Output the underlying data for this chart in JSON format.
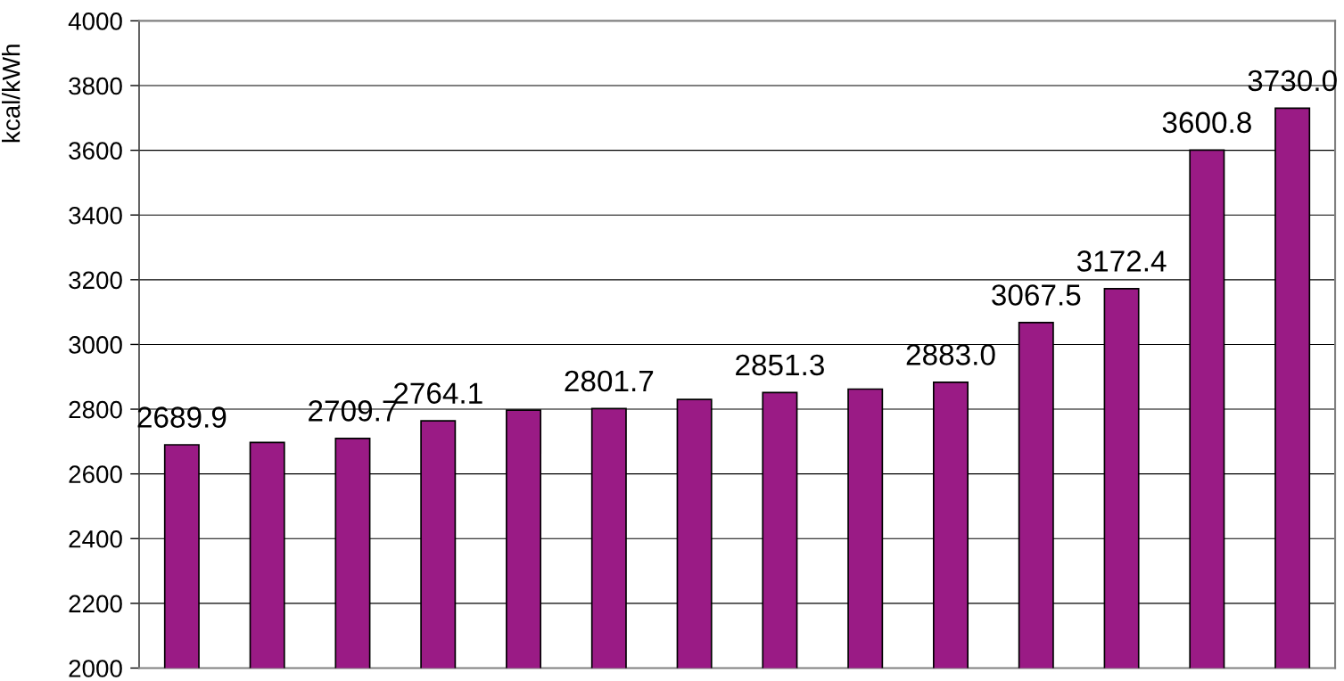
{
  "chart_data": {
    "type": "bar",
    "ylabel": "kcal/kWh",
    "categories": [
      null,
      null,
      null,
      null,
      null,
      null,
      null,
      null,
      null,
      null,
      null,
      null,
      null,
      null
    ],
    "values": [
      2689.9,
      2697,
      2709.7,
      2764.1,
      2797,
      2801.7,
      2830,
      2851.3,
      2862,
      2883.0,
      3067.5,
      3172.4,
      3600.8,
      3730.0
    ],
    "value_labels": [
      "2689.9",
      null,
      "2709.7",
      "2764.1",
      null,
      "2801.7",
      null,
      "2851.3",
      null,
      "2883.0",
      "3067.5",
      "3172.4",
      "3600.8",
      "3730.0"
    ],
    "color": "#9a1b85",
    "ylim": [
      2000,
      4000
    ],
    "yticks": [
      2000,
      2200,
      2400,
      2600,
      2800,
      3000,
      3200,
      3400,
      3600,
      3800,
      4000
    ],
    "grid": "y",
    "tick_labels": "y"
  }
}
